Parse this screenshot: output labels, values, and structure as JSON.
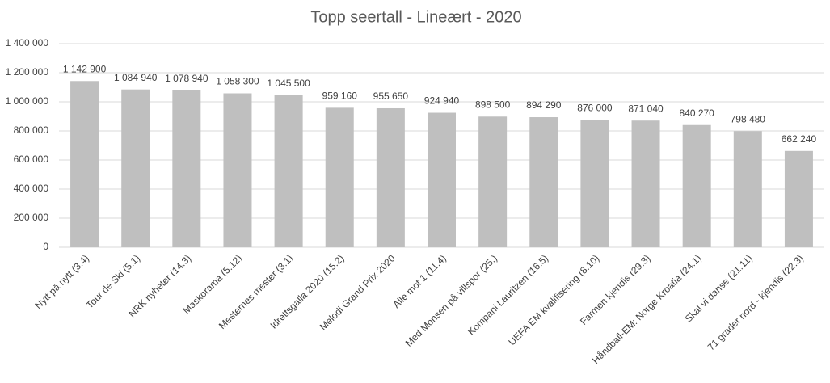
{
  "chart_data": {
    "type": "bar",
    "title": "Topp seertall - Lineært - 2020",
    "categories": [
      "Nytt på nytt (3.4)",
      "Tour de Ski (5.1)",
      "NRK nyheter (14.3)",
      "Maskorama (5.12)",
      "Mesternes mester (3.1)",
      "Idrettsgalla 2020 (15.2)",
      "Melodi Grand Prix 2020",
      "Alle mot 1 (11.4)",
      "Med Monsen på villspor (25.)",
      "Kompani Lauritzen (16.5)",
      "UEFA EM kvalifisering (8.10)",
      "Farmen kjendis (29.3)",
      "Håndball-EM: Norge Kroatia (24.1)",
      "Skal vi danse (21.11)",
      "71 grader nord - kjendis (22.3)"
    ],
    "values": [
      1142900,
      1084940,
      1078940,
      1058300,
      1045500,
      959160,
      955650,
      924940,
      898500,
      894290,
      876000,
      871040,
      840270,
      798480,
      662240
    ],
    "value_labels": [
      "1 142 900",
      "1 084 940",
      "1 078 940",
      "1 058 300",
      "1 045 500",
      "959 160",
      "955 650",
      "924 940",
      "898 500",
      "894 290",
      "876 000",
      "871 040",
      "840 270",
      "798 480",
      "662 240"
    ],
    "color": "#bfbfbf",
    "ylim": [
      0,
      1400000
    ],
    "yticks": [
      0,
      {
        "value": 200000,
        "label": "200 000"
      },
      {
        "value": 400000,
        "label": "400 000"
      },
      {
        "value": 600000,
        "label": "600 000"
      },
      {
        "value": 800000,
        "label": "800 000"
      },
      {
        "value": 1000000,
        "label": "1 000 000"
      },
      {
        "value": 1200000,
        "label": "1 200 000"
      },
      {
        "value": 1400000,
        "label": "1 400 000"
      }
    ],
    "grid": true
  }
}
